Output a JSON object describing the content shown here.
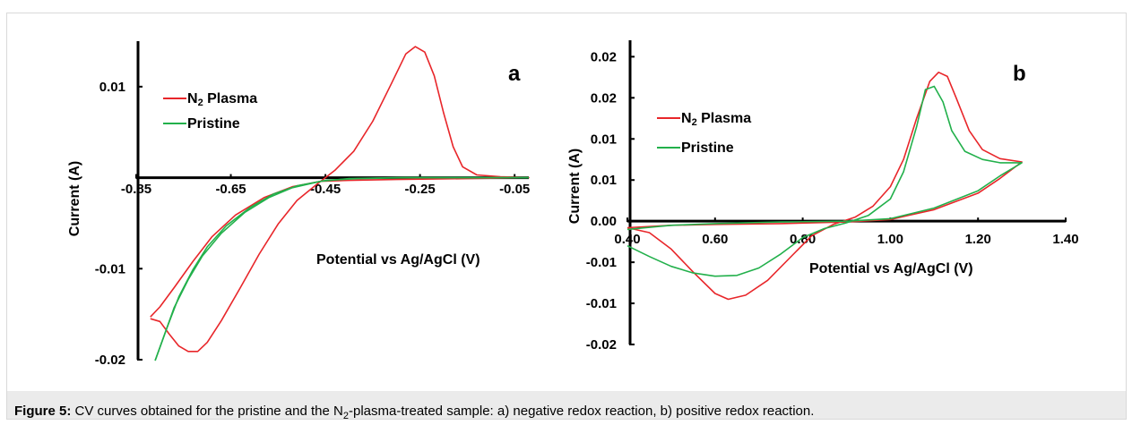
{
  "caption": {
    "label": "Figure 5:",
    "text_before": " CV curves obtained for the pristine and the N",
    "sub": "2",
    "text_after": "-plasma-treated sample: a) negative redox reaction, b) positive redox reaction."
  },
  "colors": {
    "n2_plasma": "#e8262a",
    "pristine": "#22b04b",
    "axis": "#000000"
  },
  "chart_data": [
    {
      "type": "line",
      "panel_label": "a",
      "xlabel": "Potential vs Ag/AgCl (V)",
      "ylabel": "Current (A)",
      "xlim": [
        -0.85,
        -0.02
      ],
      "ylim": [
        -0.02,
        0.015
      ],
      "x_ticks": [
        -0.85,
        -0.65,
        -0.45,
        -0.25,
        -0.05
      ],
      "x_tick_labels": [
        "-0.85",
        "-0.65",
        "-0.45",
        "-0.25",
        "-0.05"
      ],
      "y_ticks": [
        0.01,
        -0.01,
        -0.02
      ],
      "y_tick_labels": [
        "0.01",
        "-0.01",
        "-0.02"
      ],
      "legend": {
        "position": "top-left",
        "entries": [
          {
            "name_main": "N",
            "name_sub": "2",
            "name_rest": " Plasma",
            "color_key": "n2_plasma"
          },
          {
            "name_main": "Pristine",
            "name_sub": "",
            "name_rest": "",
            "color_key": "pristine"
          }
        ]
      },
      "series": [
        {
          "name": "N2 Plasma",
          "color_key": "n2_plasma",
          "points": [
            [
              -0.82,
              -0.0155
            ],
            [
              -0.8,
              -0.0158
            ],
            [
              -0.78,
              -0.0172
            ],
            [
              -0.76,
              -0.0185
            ],
            [
              -0.74,
              -0.0191
            ],
            [
              -0.72,
              -0.0191
            ],
            [
              -0.7,
              -0.0181
            ],
            [
              -0.67,
              -0.0157
            ],
            [
              -0.63,
              -0.0121
            ],
            [
              -0.59,
              -0.0084
            ],
            [
              -0.55,
              -0.0051
            ],
            [
              -0.51,
              -0.0025
            ],
            [
              -0.47,
              -0.0008
            ],
            [
              -0.43,
              0.0008
            ],
            [
              -0.39,
              0.0029
            ],
            [
              -0.35,
              0.0062
            ],
            [
              -0.31,
              0.0104
            ],
            [
              -0.28,
              0.0136
            ],
            [
              -0.26,
              0.0144
            ],
            [
              -0.24,
              0.0138
            ],
            [
              -0.22,
              0.0112
            ],
            [
              -0.2,
              0.0071
            ],
            [
              -0.18,
              0.0034
            ],
            [
              -0.16,
              0.0012
            ],
            [
              -0.13,
              0.0003
            ],
            [
              -0.08,
              0.0001
            ],
            [
              -0.02,
              0.0
            ],
            [
              -0.15,
              -0.0001
            ],
            [
              -0.3,
              -0.0002
            ],
            [
              -0.4,
              -0.0003
            ],
            [
              -0.46,
              -0.0004
            ],
            [
              -0.52,
              -0.001
            ],
            [
              -0.58,
              -0.0022
            ],
            [
              -0.64,
              -0.0041
            ],
            [
              -0.69,
              -0.0065
            ],
            [
              -0.73,
              -0.0092
            ],
            [
              -0.77,
              -0.0121
            ],
            [
              -0.8,
              -0.0142
            ],
            [
              -0.82,
              -0.0153
            ]
          ]
        },
        {
          "name": "Pristine",
          "color_key": "pristine",
          "points": [
            [
              -0.81,
              -0.0201
            ],
            [
              -0.79,
              -0.0172
            ],
            [
              -0.77,
              -0.0143
            ],
            [
              -0.74,
              -0.0112
            ],
            [
              -0.71,
              -0.0086
            ],
            [
              -0.67,
              -0.0061
            ],
            [
              -0.62,
              -0.0038
            ],
            [
              -0.57,
              -0.0022
            ],
            [
              -0.52,
              -0.0011
            ],
            [
              -0.46,
              -0.0004
            ],
            [
              -0.4,
              -0.0001
            ],
            [
              -0.3,
              0.0
            ],
            [
              -0.2,
              0.0
            ],
            [
              -0.1,
              0.0
            ],
            [
              -0.02,
              0.0
            ]
          ]
        },
        {
          "name": "Pristine",
          "color_key": "pristine",
          "points": [
            [
              -0.81,
              -0.0201
            ],
            [
              -0.785,
              -0.0165
            ],
            [
              -0.76,
              -0.0131
            ],
            [
              -0.73,
              -0.0101
            ],
            [
              -0.7,
              -0.0076
            ],
            [
              -0.66,
              -0.0053
            ],
            [
              -0.61,
              -0.0033
            ],
            [
              -0.56,
              -0.0018
            ],
            [
              -0.51,
              -0.0009
            ],
            [
              -0.45,
              -0.0003
            ],
            [
              -0.38,
              -0.0001
            ],
            [
              -0.28,
              0.0
            ],
            [
              -0.15,
              0.0
            ],
            [
              -0.02,
              0.0
            ]
          ]
        }
      ]
    },
    {
      "type": "line",
      "panel_label": "b",
      "xlabel": "Potential vs Ag/AgCl (V)",
      "ylabel": "Current (A)",
      "xlim": [
        0.4,
        1.4
      ],
      "ylim": [
        -0.015,
        0.022
      ],
      "x_ticks": [
        0.4,
        0.6,
        0.8,
        1.0,
        1.2,
        1.4
      ],
      "x_tick_labels": [
        "0.40",
        "0.60",
        "0.80",
        "1.00",
        "1.20",
        "1.40"
      ],
      "y_ticks": [
        0.02,
        0.015,
        0.01,
        0.005,
        0.0,
        -0.005,
        -0.01,
        -0.015
      ],
      "y_tick_labels": [
        "0.02",
        "0.02",
        "0.01",
        "0.01",
        "0.00",
        "-0.01",
        "-0.01",
        "-0.02"
      ],
      "legend": {
        "position": "top-left",
        "entries": [
          {
            "name_main": "N",
            "name_sub": "2",
            "name_rest": " Plasma",
            "color_key": "n2_plasma"
          },
          {
            "name_main": "Pristine",
            "name_sub": "",
            "name_rest": "",
            "color_key": "pristine"
          }
        ]
      },
      "series": [
        {
          "name": "N2 Plasma",
          "color_key": "n2_plasma",
          "points": [
            [
              0.4,
              -0.0008
            ],
            [
              0.45,
              -0.0014
            ],
            [
              0.5,
              -0.0034
            ],
            [
              0.55,
              -0.0062
            ],
            [
              0.6,
              -0.0088
            ],
            [
              0.63,
              -0.0095
            ],
            [
              0.67,
              -0.009
            ],
            [
              0.72,
              -0.0072
            ],
            [
              0.77,
              -0.0045
            ],
            [
              0.82,
              -0.0018
            ],
            [
              0.87,
              -0.0004
            ],
            [
              0.92,
              0.0005
            ],
            [
              0.96,
              0.0018
            ],
            [
              1.0,
              0.0042
            ],
            [
              1.03,
              0.0075
            ],
            [
              1.06,
              0.0125
            ],
            [
              1.09,
              0.017
            ],
            [
              1.11,
              0.0181
            ],
            [
              1.13,
              0.0176
            ],
            [
              1.15,
              0.015
            ],
            [
              1.18,
              0.011
            ],
            [
              1.21,
              0.0087
            ],
            [
              1.25,
              0.0076
            ],
            [
              1.3,
              0.0072
            ],
            [
              1.25,
              0.0052
            ],
            [
              1.2,
              0.0034
            ],
            [
              1.1,
              0.0014
            ],
            [
              1.0,
              0.0002
            ],
            [
              0.9,
              -0.0001
            ],
            [
              0.75,
              -0.0003
            ],
            [
              0.6,
              -0.0004
            ],
            [
              0.5,
              -0.0005
            ],
            [
              0.4,
              -0.0008
            ]
          ]
        },
        {
          "name": "Pristine",
          "color_key": "pristine",
          "points": [
            [
              0.4,
              -0.003
            ],
            [
              0.45,
              -0.0043
            ],
            [
              0.5,
              -0.0055
            ],
            [
              0.55,
              -0.0063
            ],
            [
              0.6,
              -0.0067
            ],
            [
              0.65,
              -0.0066
            ],
            [
              0.7,
              -0.0057
            ],
            [
              0.75,
              -0.004
            ],
            [
              0.8,
              -0.002
            ],
            [
              0.85,
              -0.0009
            ],
            [
              0.9,
              -0.0002
            ],
            [
              0.95,
              0.0007
            ],
            [
              1.0,
              0.0027
            ],
            [
              1.03,
              0.006
            ],
            [
              1.06,
              0.0115
            ],
            [
              1.08,
              0.016
            ],
            [
              1.1,
              0.0164
            ],
            [
              1.12,
              0.0145
            ],
            [
              1.14,
              0.011
            ],
            [
              1.17,
              0.0085
            ],
            [
              1.21,
              0.0075
            ],
            [
              1.25,
              0.0071
            ],
            [
              1.3,
              0.0071
            ],
            [
              1.25,
              0.0055
            ],
            [
              1.2,
              0.0037
            ],
            [
              1.1,
              0.0016
            ],
            [
              1.0,
              0.0003
            ],
            [
              0.9,
              0.0
            ],
            [
              0.75,
              -0.0001
            ],
            [
              0.6,
              -0.0003
            ],
            [
              0.5,
              -0.0005
            ],
            [
              0.4,
              -0.001
            ]
          ]
        }
      ]
    }
  ]
}
